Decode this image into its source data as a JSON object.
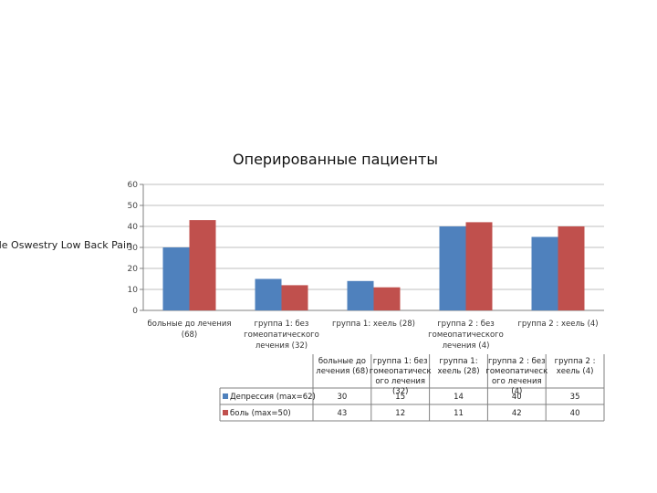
{
  "chart_data": {
    "type": "bar",
    "title": "Оперированные пациенты",
    "ylabel": "ale Oswestry Low Back Pain",
    "xlabel": "",
    "ylim": [
      0,
      60
    ],
    "yticks": [
      0,
      10,
      20,
      30,
      40,
      50,
      60
    ],
    "grid": true,
    "categories": [
      [
        "больные до лечения",
        "(68)"
      ],
      [
        "группа 1: без",
        "гомеопатического",
        "лечения (32)"
      ],
      [
        "группа 1: хеель (28)"
      ],
      [
        "группа 2 : без",
        "гомеопатического",
        "лечения (4)"
      ],
      [
        "группа 2 : хеель (4)"
      ]
    ],
    "table_headers": [
      [
        "больные до",
        "лечения (68)"
      ],
      [
        "группа 1: без",
        "гомеопатическ",
        "ого лечения",
        "(32)"
      ],
      [
        "группа 1:",
        "хеель (28)"
      ],
      [
        "группа 2 : без",
        "гомеопатическ",
        "ого лечения",
        "(4)"
      ],
      [
        "группа 2 :",
        "хеель (4)"
      ]
    ],
    "series": [
      {
        "name": "Депрессия (max=62)",
        "color": "#4f81bd",
        "values": [
          30,
          15,
          14,
          40,
          35
        ]
      },
      {
        "name": "боль (max=50)",
        "color": "#c0504d",
        "values": [
          43,
          12,
          11,
          42,
          40
        ]
      }
    ]
  }
}
